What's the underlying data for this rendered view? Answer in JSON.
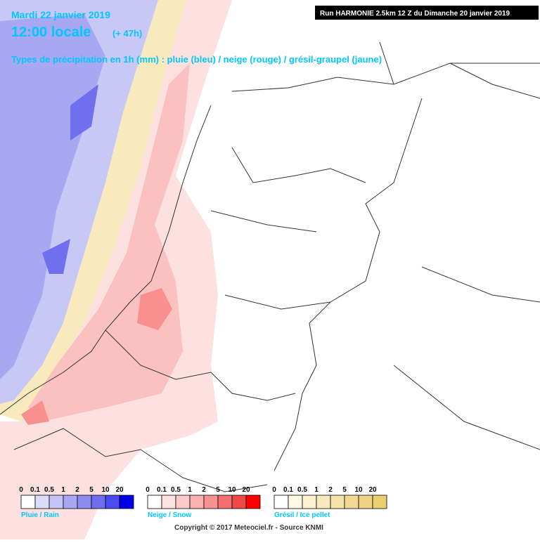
{
  "header": {
    "date": "Mardi 22 janvier 2019",
    "time": "12:00 locale",
    "lead": "(+ 47h)",
    "subtitle": "Types de précipitation en 1h (mm) : pluie (bleu) / neige (rouge) / grésil-graupel (jaune)",
    "run": "Run HARMONIE 2.5km 12 Z du Dimanche 20 janvier 2019"
  },
  "legends": [
    {
      "title": "Pluie / Rain",
      "labels": [
        "0",
        "0.1",
        "0.5",
        "1",
        "2",
        "5",
        "10",
        "20"
      ],
      "colors": [
        "#ffffff",
        "#dcdcfa",
        "#c4c4f6",
        "#a8a8f2",
        "#8c8cf0",
        "#6e6eee",
        "#4a4af0",
        "#0000e6"
      ]
    },
    {
      "title": "Neige / Snow",
      "labels": [
        "0",
        "0.1",
        "0.5",
        "1",
        "2",
        "5",
        "10",
        "20"
      ],
      "colors": [
        "#ffffff",
        "#fde2e2",
        "#fccaca",
        "#fbafaf",
        "#f89292",
        "#f47070",
        "#f04848",
        "#ff0000"
      ]
    },
    {
      "title": "Grésil / Ice pellet",
      "labels": [
        "0",
        "0.1",
        "0.5",
        "1",
        "2",
        "5",
        "10",
        "20"
      ],
      "colors": [
        "#ffffff",
        "#fdf9e4",
        "#fbf2d0",
        "#f8eabc",
        "#f5e2aa",
        "#f2da96",
        "#efd384",
        "#ead070"
      ]
    }
  ],
  "footer": {
    "copyright": "Copyright © 2017 Meteociel.fr - Source KNMI"
  }
}
